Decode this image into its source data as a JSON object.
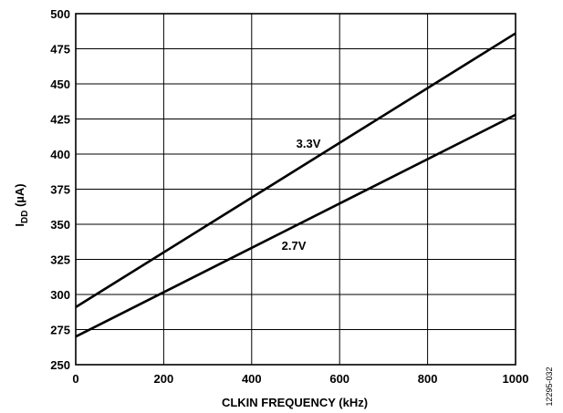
{
  "chart_data": {
    "type": "line",
    "xlabel": "CLKIN FREQUENCY (kHz)",
    "ylabel_main": "I",
    "ylabel_sub": "DD",
    "ylabel_unit": " (µA)",
    "xlim": [
      0,
      1000
    ],
    "ylim": [
      250,
      500
    ],
    "xticks": [
      0,
      200,
      400,
      600,
      800,
      1000
    ],
    "yticks": [
      250,
      275,
      300,
      325,
      350,
      375,
      400,
      425,
      450,
      475,
      500
    ],
    "grid": true,
    "series": [
      {
        "name": "3.3V",
        "x": [
          0,
          1000
        ],
        "y": [
          291,
          486
        ]
      },
      {
        "name": "2.7V",
        "x": [
          0,
          1000
        ],
        "y": [
          270,
          428
        ]
      }
    ]
  },
  "figure_id": "12295-032"
}
